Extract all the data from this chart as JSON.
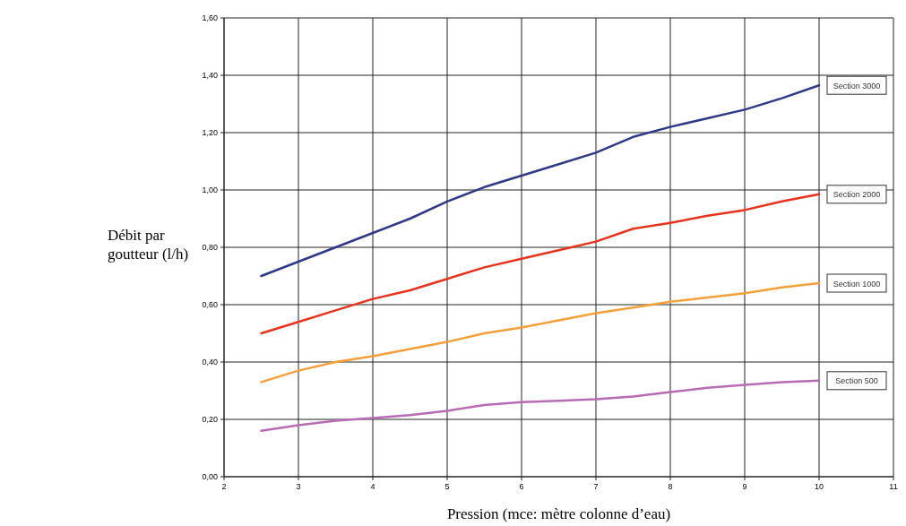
{
  "chart_data": {
    "type": "line",
    "xlabel": "Pression (mce: mètre colonne d’eau)",
    "ylabel": "Débit par goutteur (l/h)",
    "x": [
      2.5,
      3,
      3.5,
      4,
      4.5,
      5,
      5.5,
      6,
      6.5,
      7,
      7.5,
      8,
      8.5,
      9,
      9.5,
      10
    ],
    "series": [
      {
        "name": "Section 3000",
        "color": "#2e3a87",
        "values": [
          0.7,
          0.75,
          0.8,
          0.85,
          0.9,
          0.96,
          1.01,
          1.05,
          1.09,
          1.13,
          1.185,
          1.22,
          1.25,
          1.28,
          1.32,
          1.365
        ]
      },
      {
        "name": "Section 2000",
        "color": "#e8321e",
        "values": [
          0.5,
          0.54,
          0.58,
          0.62,
          0.65,
          0.69,
          0.73,
          0.76,
          0.79,
          0.82,
          0.865,
          0.885,
          0.91,
          0.93,
          0.96,
          0.985
        ]
      },
      {
        "name": "Section 1000",
        "color": "#f5a03a",
        "values": [
          0.33,
          0.37,
          0.4,
          0.42,
          0.445,
          0.47,
          0.5,
          0.52,
          0.545,
          0.57,
          0.59,
          0.61,
          0.625,
          0.64,
          0.66,
          0.675
        ]
      },
      {
        "name": "Section 500",
        "color": "#b86bb5",
        "values": [
          0.16,
          0.18,
          0.195,
          0.205,
          0.215,
          0.23,
          0.25,
          0.26,
          0.265,
          0.27,
          0.28,
          0.295,
          0.31,
          0.32,
          0.33,
          0.335
        ]
      }
    ],
    "xlim": [
      2,
      11
    ],
    "xticks": [
      2,
      3,
      4,
      5,
      6,
      7,
      8,
      9,
      10,
      11
    ],
    "ylim": [
      0,
      1.6
    ],
    "yticks": [
      {
        "value": 0,
        "label": "0,00"
      },
      {
        "value": 0.2,
        "label": "0,20"
      },
      {
        "value": 0.4,
        "label": "0,40"
      },
      {
        "value": 0.6,
        "label": "0,60"
      },
      {
        "value": 0.8,
        "label": "0,80"
      },
      {
        "value": 1,
        "label": "1,00"
      },
      {
        "value": 1.2,
        "label": "1,20"
      },
      {
        "value": 1.4,
        "label": "1,40"
      },
      {
        "value": 1.6,
        "label": "1,60"
      }
    ],
    "grid": true,
    "marker": "none",
    "line_style": "solid"
  }
}
